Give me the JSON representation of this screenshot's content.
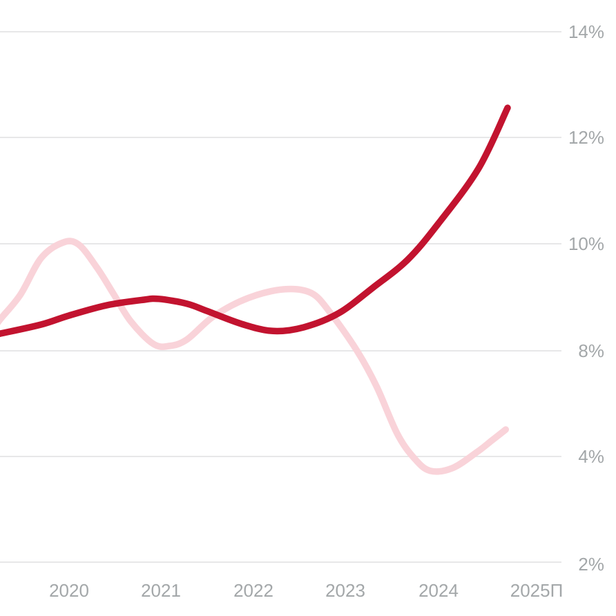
{
  "chart_data": {
    "type": "line",
    "title": "",
    "xlabel": "",
    "ylabel": "",
    "grid": "horizontal",
    "legend_position": "none",
    "x_axis": {
      "tick_labels": [
        "2020",
        "2021",
        "2022",
        "2023",
        "2024",
        "2025П"
      ],
      "tick_years": [
        2020,
        2021,
        2022,
        2023,
        2024,
        2025
      ]
    },
    "y_axis": {
      "tick_labels": [
        "14%",
        "12%",
        "10%",
        "8%",
        "4%",
        "2%"
      ],
      "tick_values": [
        14,
        12,
        10,
        8,
        4,
        2
      ],
      "unit": "%"
    },
    "series": [
      {
        "name": "light-pink-line",
        "color": "#f9d3d9",
        "points": [
          [
            2019.15,
            8.3
          ],
          [
            2019.26,
            8.58
          ],
          [
            2019.48,
            9.05
          ],
          [
            2019.7,
            9.73
          ],
          [
            2019.93,
            10.02
          ],
          [
            2020.1,
            9.99
          ],
          [
            2020.3,
            9.55
          ],
          [
            2020.48,
            9.05
          ],
          [
            2020.66,
            8.55
          ],
          [
            2020.9,
            8.13
          ],
          [
            2021.07,
            8.09
          ],
          [
            2021.26,
            8.21
          ],
          [
            2021.55,
            8.65
          ],
          [
            2021.92,
            8.99
          ],
          [
            2022.3,
            9.15
          ],
          [
            2022.59,
            9.08
          ],
          [
            2022.79,
            8.72
          ],
          [
            2023.08,
            8.0
          ],
          [
            2023.29,
            6.64
          ],
          [
            2023.51,
            4.86
          ],
          [
            2023.69,
            3.97
          ],
          [
            2023.86,
            3.73
          ],
          [
            2024.1,
            3.78
          ],
          [
            2024.36,
            4.16
          ],
          [
            2024.52,
            4.6
          ],
          [
            2024.67,
            5.02
          ]
        ]
      },
      {
        "name": "dark-red-line",
        "color": "#c2132f",
        "points": [
          [
            2019.15,
            8.28
          ],
          [
            2019.26,
            8.32
          ],
          [
            2019.7,
            8.49
          ],
          [
            2020.0,
            8.66
          ],
          [
            2020.4,
            8.85
          ],
          [
            2020.78,
            8.95
          ],
          [
            2020.96,
            8.97
          ],
          [
            2021.26,
            8.88
          ],
          [
            2021.48,
            8.74
          ],
          [
            2021.85,
            8.5
          ],
          [
            2022.18,
            8.37
          ],
          [
            2022.51,
            8.44
          ],
          [
            2022.88,
            8.7
          ],
          [
            2023.25,
            9.18
          ],
          [
            2023.62,
            9.7
          ],
          [
            2023.95,
            10.38
          ],
          [
            2024.38,
            11.42
          ],
          [
            2024.69,
            12.56
          ]
        ]
      }
    ]
  },
  "colors": {
    "background": "#ffffff",
    "gridline": "#e7e7e8",
    "axis_label": "#a3a7a9",
    "series_dark": "#c2132f",
    "series_light": "#f9d3d9"
  }
}
